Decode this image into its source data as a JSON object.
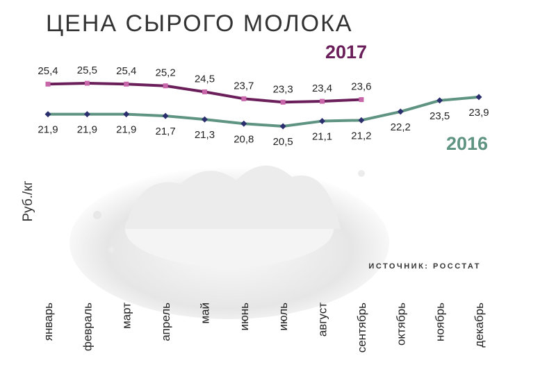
{
  "chart_data": {
    "type": "line",
    "title": "ЦЕНА СЫРОГО МОЛОКА",
    "y_label": "Руб./кг",
    "source": "ИСТОЧНИК: РОССТАТ",
    "categories": [
      "январь",
      "февраль",
      "март",
      "апрель",
      "май",
      "июнь",
      "июль",
      "август",
      "сентябрь",
      "октябрь",
      "ноябрь",
      "декабрь"
    ],
    "series": [
      {
        "name": "2017",
        "color": "#6b1f5a",
        "marker_color": "#c866aa",
        "values": [
          25.4,
          25.5,
          25.4,
          25.2,
          24.5,
          23.7,
          23.3,
          23.4,
          23.6,
          null,
          null,
          null
        ],
        "value_labels": [
          "25,4",
          "25,5",
          "25,4",
          "25,2",
          "24,5",
          "23,7",
          "23,3",
          "23,4",
          "23,6",
          null,
          null,
          null
        ]
      },
      {
        "name": "2016",
        "color": "#5f9482",
        "marker_color": "#2b2f6e",
        "values": [
          21.9,
          21.9,
          21.9,
          21.7,
          21.3,
          20.8,
          20.5,
          21.1,
          21.2,
          22.2,
          23.5,
          23.9
        ],
        "value_labels": [
          "21,9",
          "21,9",
          "21,9",
          "21,7",
          "21,3",
          "20,8",
          "20,5",
          "21,1",
          "21,2",
          "22,2",
          "23,5",
          "23,9"
        ]
      }
    ]
  }
}
